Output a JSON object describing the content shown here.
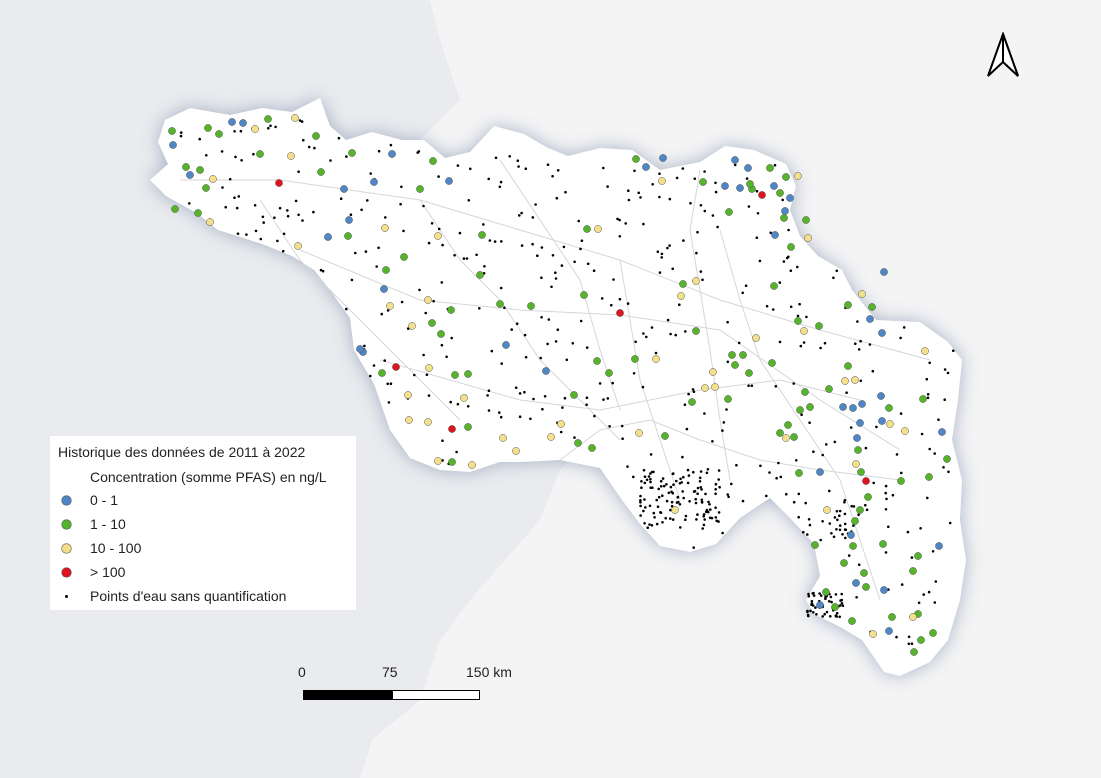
{
  "legend": {
    "title": "Historique des données de 2011 à 2022",
    "subtitle": "Concentration (somme PFAS) en ng/L",
    "items": [
      {
        "label": "0 - 1",
        "color": "#4f86c6"
      },
      {
        "label": "1 - 10",
        "color": "#56b42a"
      },
      {
        "label": "10 - 100",
        "color": "#f5e08a"
      },
      {
        "label": "> 100",
        "color": "#e0141d"
      },
      {
        "label": "Points d'eau sans quantification",
        "color": "#000000"
      }
    ]
  },
  "scale_bar": {
    "ticks": [
      "0",
      "75",
      "150 km"
    ]
  },
  "north_arrow": {
    "icon": "north-arrow-icon"
  },
  "colors": {
    "ocean": "#e9ebee",
    "land_outside": "#f3f3f3",
    "region": "#ffffff",
    "halo": "#9aa8c0"
  }
}
